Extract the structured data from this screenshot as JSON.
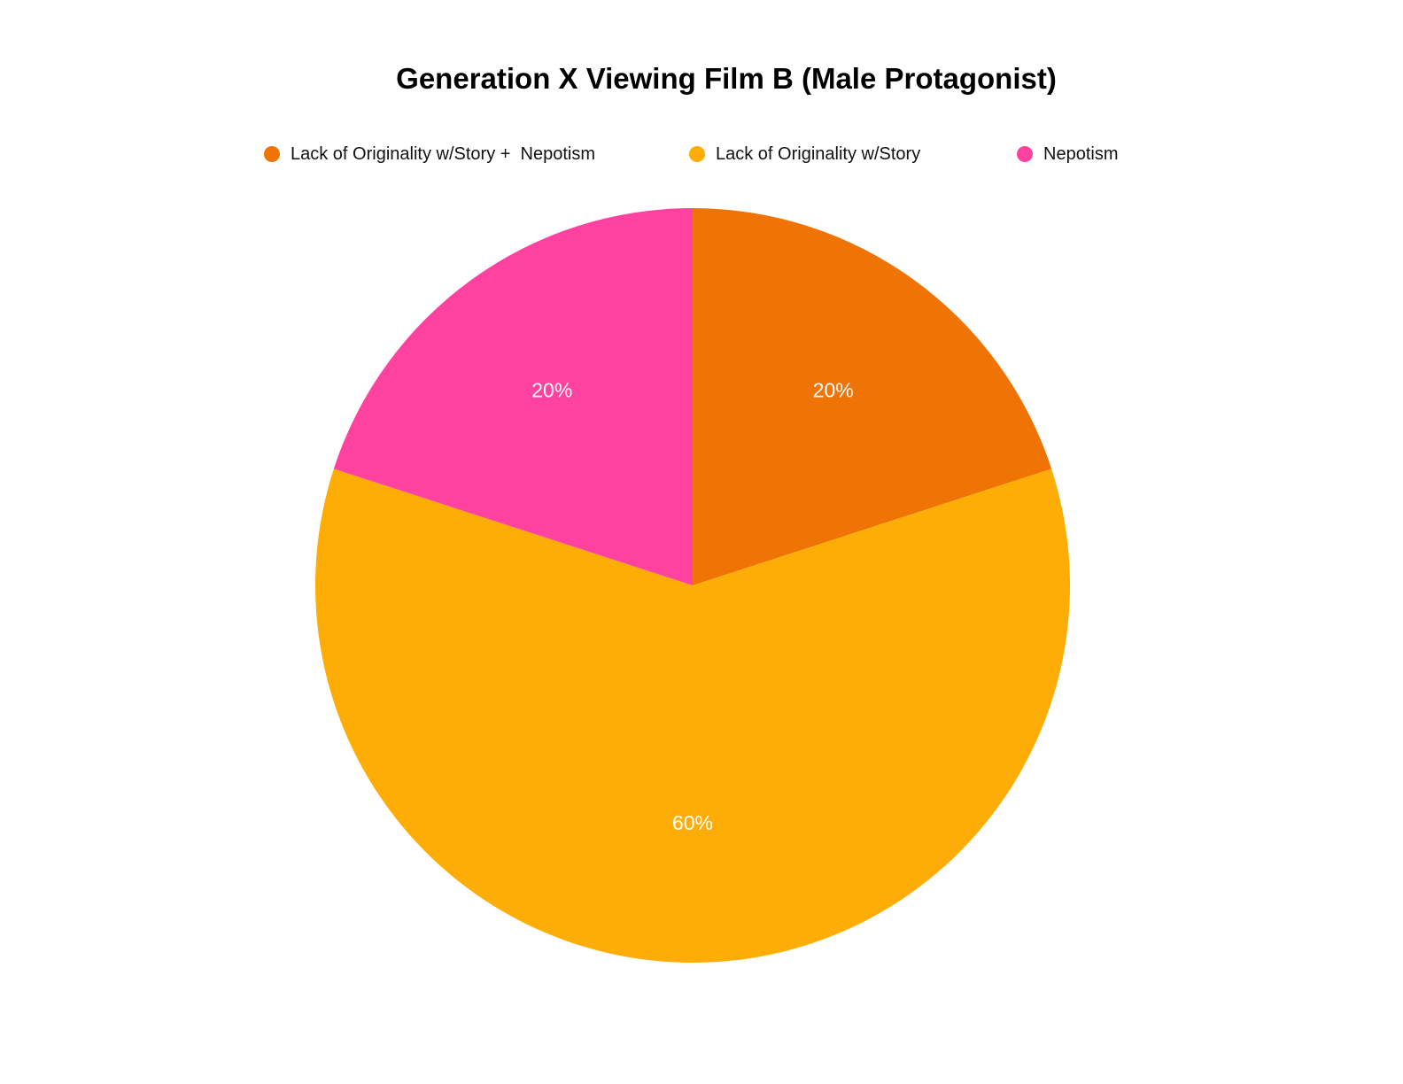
{
  "chart_data": {
    "type": "pie",
    "title": "Generation X Viewing Film B (Male Protagonist)",
    "legend_position": "top",
    "slices": [
      {
        "label": "Lack of Originality w/Story +  Nepotism",
        "value": 20,
        "display": "20%",
        "color": "#F07305"
      },
      {
        "label": "Lack of Originality w/Story",
        "value": 60,
        "display": "60%",
        "color": "#FDAD06"
      },
      {
        "label": "Nepotism",
        "value": 20,
        "display": "20%",
        "color": "#FF429F"
      }
    ]
  }
}
